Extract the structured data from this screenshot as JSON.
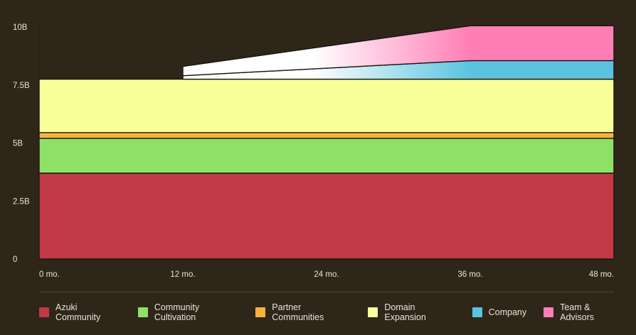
{
  "chart_data": {
    "type": "area",
    "x_ticks": [
      "0 mo.",
      "12 mo.",
      "24 mo.",
      "36 mo.",
      "48 mo."
    ],
    "x_values": [
      0,
      12,
      24,
      36,
      48
    ],
    "y_ticks": [
      "0",
      "2.5B",
      "5B",
      "7.5B",
      "10B"
    ],
    "y_tick_values": [
      0,
      2.5,
      5,
      7.5,
      10
    ],
    "ylim": [
      0,
      10
    ],
    "xlim": [
      0,
      48
    ],
    "legend_position": "bottom",
    "series": [
      {
        "name": "Azuki Community",
        "color": "#c03a47",
        "points": [
          [
            0,
            3.7
          ],
          [
            48,
            3.7
          ]
        ],
        "vesting_start": 0
      },
      {
        "name": "Community Cultivation",
        "color": "#8fe067",
        "points": [
          [
            0,
            1.5
          ],
          [
            48,
            1.5
          ]
        ],
        "vesting_start": 0
      },
      {
        "name": "Partner Communities",
        "color": "#f7b338",
        "points": [
          [
            0,
            0.25
          ],
          [
            48,
            0.25
          ]
        ],
        "vesting_start": 0
      },
      {
        "name": "Domain Expansion",
        "color": "#faff99",
        "points": [
          [
            0,
            2.3
          ],
          [
            48,
            2.3
          ]
        ],
        "vesting_start": 0
      },
      {
        "name": "Company",
        "color": "#5bc3df",
        "points": [
          [
            12,
            0.15
          ],
          [
            36,
            0.8
          ],
          [
            48,
            0.8
          ]
        ],
        "vesting_start": 12
      },
      {
        "name": "Team & Advisors",
        "color": "#ff7eb6",
        "points": [
          [
            12,
            0.4
          ],
          [
            36,
            1.5
          ],
          [
            48,
            1.5
          ]
        ],
        "vesting_start": 12
      }
    ]
  }
}
